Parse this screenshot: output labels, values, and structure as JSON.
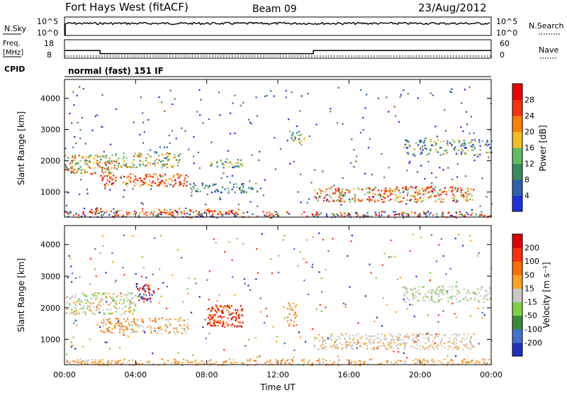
{
  "header": {
    "station": "Fort Hays West (fitACF)",
    "beam": "Beam 09",
    "date": "23/Aug/2012"
  },
  "nsky_panel": {
    "left_label": "N.Sky",
    "right_label": "N.Search",
    "left_ticks": [
      "10^5",
      "10^0"
    ],
    "right_ticks": [
      "10^5",
      "10^0"
    ]
  },
  "freq_panel": {
    "left_label_1": "Freq.",
    "left_label_2": "[MHz]",
    "right_label": "Nave",
    "left_ticks": [
      "18",
      "8"
    ],
    "right_ticks": [
      "60",
      "0"
    ]
  },
  "cpid": {
    "label": "CPID",
    "value": "normal (fast) 151 IF"
  },
  "chart_data": [
    {
      "type": "line",
      "title": "N.Sky / N.Search",
      "description_series": [
        {
          "name": "N.Sky",
          "approx_log10_level": 4.5
        }
      ],
      "x_range_hours": [
        0,
        24
      ]
    },
    {
      "type": "line",
      "title": "Freq / Nave",
      "series": [
        {
          "name": "Freq",
          "points": [
            [
              0,
              12
            ],
            [
              2,
              12
            ],
            [
              2,
              10
            ],
            [
              14,
              10
            ],
            [
              14,
              12
            ],
            [
              24,
              12
            ]
          ]
        },
        {
          "name": "Nave",
          "points": [
            [
              0,
              8
            ],
            [
              24,
              8
            ]
          ]
        }
      ],
      "x_range_hours": [
        0,
        24
      ]
    },
    {
      "type": "heatmap",
      "ylabel": "Slant Range [km]",
      "yticks": [
        "1000",
        "2000",
        "3000",
        "4000"
      ],
      "ylim": [
        200,
        4600
      ],
      "colorbar": {
        "label": "Power [dB]",
        "ticks": [
          "4",
          "8",
          "12",
          "16",
          "20",
          "24",
          "28"
        ],
        "colors": [
          "#1e2fe0",
          "#3060b0",
          "#3a8a5a",
          "#66bb66",
          "#f0c020",
          "#ff8000",
          "#ff3010",
          "#ee0000"
        ]
      }
    },
    {
      "type": "heatmap",
      "ylabel": "Slant Range [km]",
      "yticks": [
        "1000",
        "2000",
        "3000",
        "4000"
      ],
      "ylim": [
        200,
        4600
      ],
      "xlabel": "Time UT",
      "xticks": [
        "00:00",
        "04:00",
        "08:00",
        "12:00",
        "16:00",
        "20:00",
        "00:00"
      ],
      "xlim_hours": [
        0,
        24
      ],
      "colorbar": {
        "label": "Velocity [m s⁻¹]",
        "ticks": [
          "200",
          "100",
          "50",
          "15",
          "-15",
          "-50",
          "-100",
          "-200"
        ],
        "colors": [
          "#2030c0",
          "#4070d0",
          "#3a8a3a",
          "#7fd040",
          "#c8c8c0",
          "#ffa020",
          "#ff7000",
          "#ff3010",
          "#e00000"
        ]
      }
    }
  ]
}
